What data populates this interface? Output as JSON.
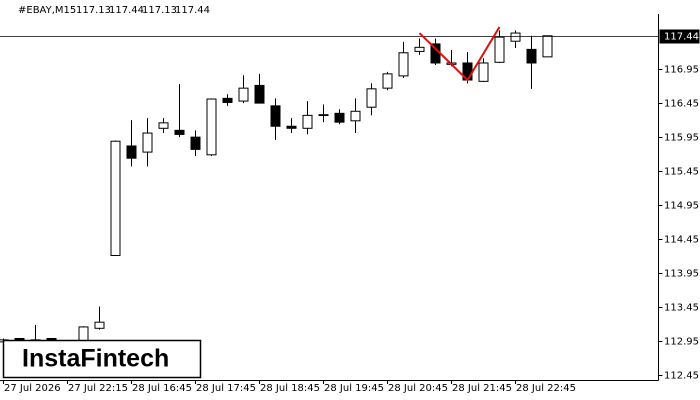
{
  "chart_data": {
    "type": "candlestick",
    "title": "#EBAY,M15",
    "watermark": "InstaFintech",
    "categories": [
      "27 Jul 2026",
      null,
      null,
      null,
      "27 Jul 22:15",
      null,
      null,
      null,
      "28 Jul 16:45",
      null,
      null,
      null,
      "28 Jul 17:45",
      null,
      null,
      null,
      "28 Jul 18:45",
      null,
      null,
      null,
      "28 Jul 19:45",
      null,
      null,
      null,
      "28 Jul 20:45",
      null,
      null,
      null,
      "28 Jul 21:45",
      null,
      null,
      null,
      "28 Jul 22:45",
      null,
      null
    ],
    "open": [
      112.94,
      112.99,
      112.96,
      112.99,
      112.95,
      112.95,
      113.14,
      114.21,
      115.82,
      115.73,
      116.08,
      116.05,
      115.95,
      115.69,
      116.52,
      116.48,
      116.71,
      116.41,
      116.11,
      116.08,
      116.27,
      116.3,
      116.19,
      116.39,
      116.67,
      116.85,
      117.21,
      117.32,
      117.02,
      117.04,
      116.77,
      117.05,
      117.36,
      117.24,
      117.13
    ],
    "high": [
      112.99,
      113.0,
      113.19,
      113.0,
      112.97,
      113.17,
      113.46,
      115.9,
      116.2,
      116.23,
      116.23,
      116.73,
      116.05,
      116.52,
      116.58,
      116.86,
      116.88,
      116.52,
      116.23,
      116.48,
      116.43,
      116.36,
      116.52,
      116.74,
      116.91,
      117.35,
      117.4,
      117.4,
      117.23,
      117.2,
      117.11,
      117.52,
      117.52,
      117.44,
      117.44
    ],
    "low": [
      112.92,
      112.92,
      112.92,
      112.9,
      112.93,
      112.93,
      113.12,
      114.21,
      115.52,
      115.52,
      116.01,
      115.95,
      115.67,
      115.67,
      116.41,
      116.45,
      116.45,
      115.91,
      116.01,
      115.99,
      116.17,
      116.14,
      116.01,
      116.27,
      116.64,
      116.82,
      117.16,
      117.01,
      116.99,
      116.74,
      116.76,
      117.04,
      117.26,
      116.66,
      117.13
    ],
    "close": [
      112.97,
      112.95,
      112.97,
      112.95,
      112.96,
      113.16,
      113.23,
      115.89,
      115.64,
      116.01,
      116.16,
      115.99,
      115.77,
      116.51,
      116.46,
      116.67,
      116.45,
      116.11,
      116.08,
      116.27,
      116.28,
      116.17,
      116.33,
      116.66,
      116.88,
      117.19,
      117.27,
      117.04,
      117.04,
      116.79,
      117.04,
      117.42,
      117.48,
      117.04,
      117.44
    ],
    "up_color": "#ffffff",
    "down_color": "#000000",
    "overlay": {
      "color": "#e01010",
      "x": [
        26,
        29,
        31
      ],
      "values": [
        117.48,
        116.79,
        117.57
      ]
    },
    "ylim": [
      112.38,
      117.76
    ],
    "yticks": [
      116.95,
      116.45,
      115.95,
      115.45,
      114.95,
      114.45,
      113.95,
      113.45,
      112.95,
      112.45
    ]
  }
}
